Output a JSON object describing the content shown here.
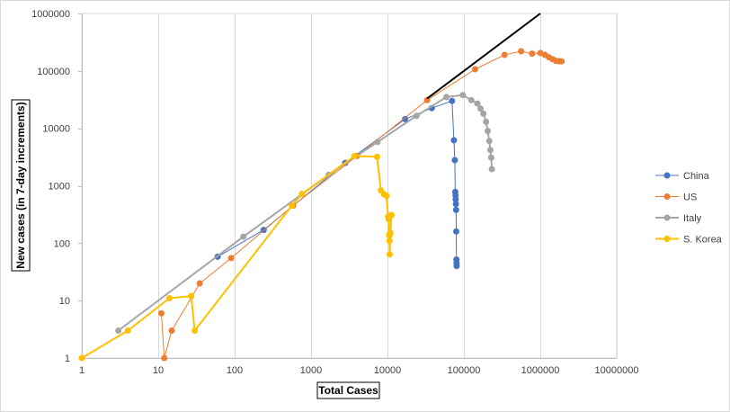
{
  "chart_data": {
    "type": "scatter",
    "xlabel": "Total Cases",
    "ylabel": "New cases  (in 7-day increments)",
    "xscale": "log",
    "yscale": "log",
    "xlim": [
      1,
      10000000
    ],
    "ylim": [
      1,
      1000000
    ],
    "grid": "vertical major gridlines",
    "legend_position": "right",
    "x_tick_labels": [
      "1",
      "10",
      "100",
      "1000",
      "10000",
      "100000",
      "1000000",
      "10000000"
    ],
    "y_tick_labels": [
      "1",
      "10",
      "100",
      "1000",
      "10000",
      "100000",
      "1000000"
    ],
    "trend_line": {
      "color": "#000000",
      "points": [
        [
          33000,
          33000
        ],
        [
          1000000,
          1000000
        ]
      ]
    },
    "series": [
      {
        "name": "China",
        "color": "#4472C4",
        "line_width": 1,
        "points": [
          [
            60,
            58
          ],
          [
            240,
            170
          ],
          [
            2800,
            2500
          ],
          [
            17000,
            14500
          ],
          [
            38000,
            22500
          ],
          [
            70000,
            30000
          ],
          [
            74000,
            6200
          ],
          [
            76000,
            2800
          ],
          [
            77000,
            780
          ],
          [
            77800,
            680
          ],
          [
            78200,
            580
          ],
          [
            78600,
            480
          ],
          [
            79000,
            380
          ],
          [
            79400,
            160
          ],
          [
            79800,
            52
          ],
          [
            80000,
            45
          ],
          [
            80300,
            40
          ]
        ]
      },
      {
        "name": "US",
        "color": "#ED7D31",
        "line_width": 1,
        "points": [
          [
            11,
            6
          ],
          [
            12,
            1
          ],
          [
            15,
            3
          ],
          [
            35,
            20
          ],
          [
            90,
            55
          ],
          [
            580,
            450
          ],
          [
            4000,
            3300
          ],
          [
            33000,
            31000
          ],
          [
            140000,
            107000
          ],
          [
            340000,
            190000
          ],
          [
            560000,
            220000
          ],
          [
            780000,
            200000
          ],
          [
            1000000,
            205000
          ],
          [
            1150000,
            190000
          ],
          [
            1300000,
            172000
          ],
          [
            1450000,
            160000
          ],
          [
            1600000,
            150000
          ],
          [
            1750000,
            148000
          ],
          [
            1900000,
            147000
          ]
        ]
      },
      {
        "name": "Italy",
        "color": "#A5A5A5",
        "line_width": 2,
        "points": [
          [
            3,
            3
          ],
          [
            130,
            130
          ],
          [
            1700,
            1550
          ],
          [
            7400,
            5800
          ],
          [
            24000,
            16500
          ],
          [
            59000,
            35000
          ],
          [
            97000,
            38000
          ],
          [
            125000,
            31000
          ],
          [
            150000,
            27000
          ],
          [
            165000,
            22000
          ],
          [
            180000,
            18000
          ],
          [
            195000,
            13000
          ],
          [
            205000,
            9000
          ],
          [
            215000,
            6000
          ],
          [
            222000,
            4200
          ],
          [
            228000,
            3100
          ],
          [
            232000,
            1950
          ]
        ]
      },
      {
        "name": "S. Korea",
        "color": "#FFC000",
        "line_width": 2,
        "points": [
          [
            1,
            1
          ],
          [
            4,
            3
          ],
          [
            14,
            11
          ],
          [
            27,
            12
          ],
          [
            30,
            3
          ],
          [
            560,
            450
          ],
          [
            760,
            720
          ],
          [
            3700,
            3300
          ],
          [
            7300,
            3200
          ],
          [
            8200,
            830
          ],
          [
            9000,
            710
          ],
          [
            9700,
            670
          ],
          [
            10200,
            290
          ],
          [
            10400,
            260
          ],
          [
            10500,
            140
          ],
          [
            10600,
            135
          ],
          [
            10650,
            110
          ],
          [
            10700,
            64
          ],
          [
            10900,
            150
          ],
          [
            11300,
            310
          ]
        ]
      }
    ]
  }
}
